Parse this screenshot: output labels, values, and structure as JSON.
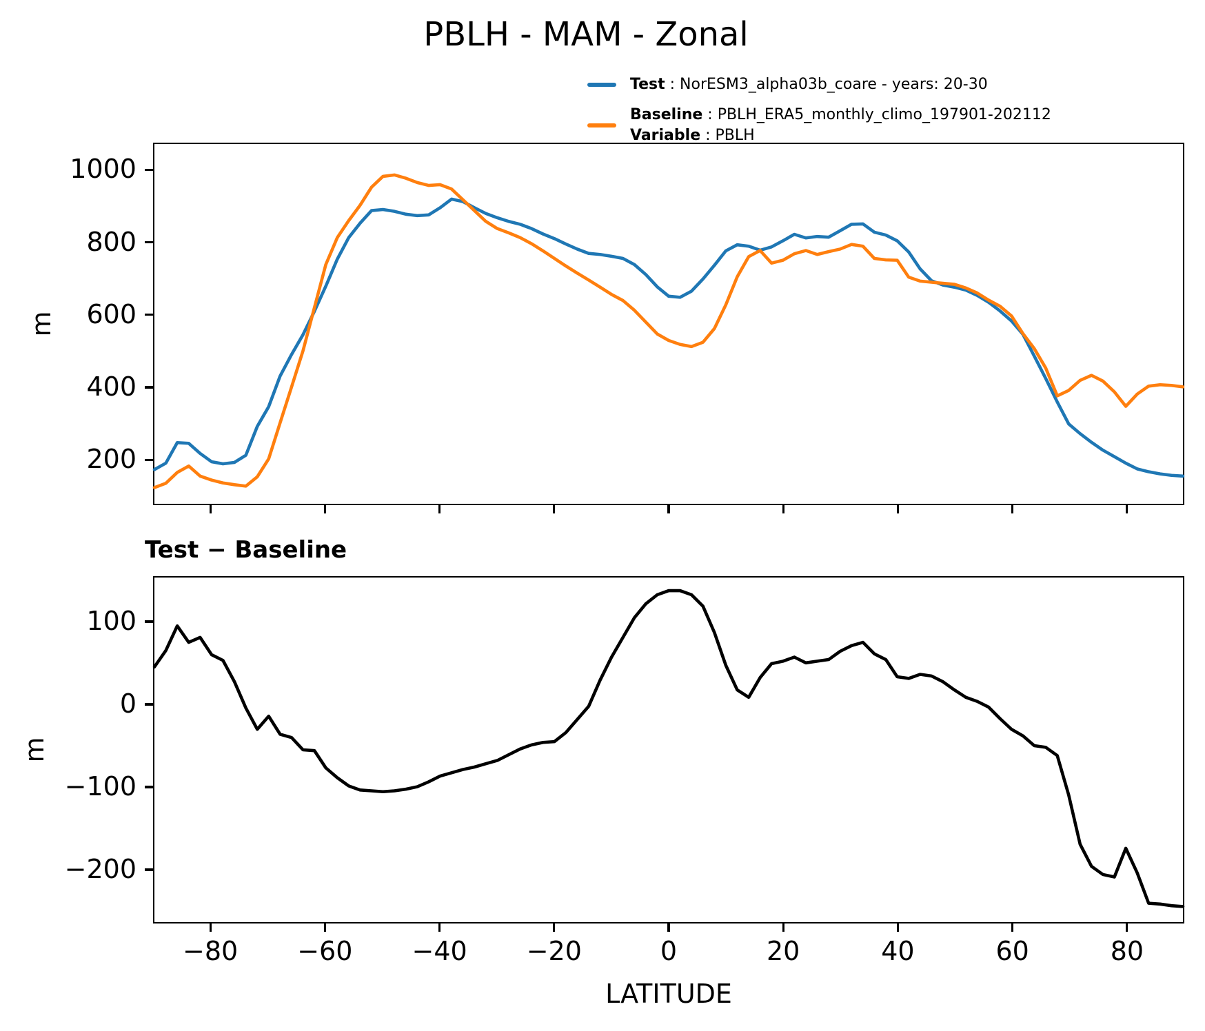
{
  "title": "PBLH - MAM - Zonal",
  "subtitle": "Test − Baseline",
  "legend": {
    "test_label": "Test",
    "test_desc": ": NorESM3_alpha03b_coare - years: 20-30",
    "baseline_label": "Baseline",
    "baseline_desc": ": PBLH_ERA5_monthly_climo_197901-202112",
    "variable_label": "Variable",
    "variable_desc": ": PBLH"
  },
  "colors": {
    "test": "#1f77b4",
    "baseline": "#ff7f0e",
    "diff": "#000000"
  },
  "axes": {
    "ylabel_top": "m",
    "ylabel_bottom": "m",
    "xlabel": "LATITUDE"
  },
  "chart_data": [
    {
      "type": "line",
      "title": "PBLH - MAM - Zonal",
      "ylabel": "m",
      "xlabel": "",
      "legend_position": "upper right, above axes",
      "grid": false,
      "xlim": [
        -90,
        90
      ],
      "ylim": [
        75,
        1075
      ],
      "yticks": [
        200,
        400,
        600,
        800,
        1000
      ],
      "xticks": [
        -80,
        -60,
        -40,
        -20,
        0,
        20,
        40,
        60,
        80
      ],
      "xticks_labeled": false,
      "x": [
        -90,
        -88,
        -86,
        -84,
        -82,
        -80,
        -78,
        -76,
        -74,
        -72,
        -70,
        -68,
        -66,
        -64,
        -62,
        -60,
        -58,
        -56,
        -54,
        -52,
        -50,
        -48,
        -46,
        -44,
        -42,
        -40,
        -38,
        -36,
        -34,
        -32,
        -30,
        -28,
        -26,
        -24,
        -22,
        -20,
        -18,
        -16,
        -14,
        -12,
        -10,
        -8,
        -6,
        -4,
        -2,
        0,
        2,
        4,
        6,
        8,
        10,
        12,
        14,
        16,
        18,
        20,
        22,
        24,
        26,
        28,
        30,
        32,
        34,
        36,
        38,
        40,
        42,
        44,
        46,
        48,
        50,
        52,
        54,
        56,
        58,
        60,
        62,
        64,
        66,
        68,
        70,
        72,
        74,
        76,
        78,
        80,
        82,
        84,
        86,
        88,
        90
      ],
      "series": [
        {
          "name": "Test: NorESM3_alpha03b_coare - years: 20-30",
          "color": "#1f77b4",
          "values": [
            170,
            188,
            245,
            243,
            215,
            192,
            186,
            190,
            210,
            290,
            345,
            430,
            490,
            545,
            610,
            680,
            755,
            815,
            855,
            890,
            893,
            888,
            880,
            876,
            878,
            898,
            922,
            915,
            898,
            882,
            870,
            860,
            852,
            840,
            825,
            812,
            797,
            783,
            771,
            768,
            763,
            757,
            740,
            712,
            678,
            652,
            649,
            666,
            700,
            738,
            778,
            795,
            791,
            780,
            789,
            806,
            824,
            814,
            818,
            816,
            834,
            852,
            853,
            830,
            822,
            806,
            775,
            728,
            695,
            683,
            677,
            669,
            654,
            635,
            611,
            583,
            546,
            485,
            423,
            358,
            297,
            270,
            246,
            224,
            206,
            188,
            172,
            164,
            158,
            154,
            152
          ]
        },
        {
          "name": "Baseline: PBLH_ERA5_monthly_climo_197901-202112",
          "color": "#ff7f0e",
          "values": [
            120,
            132,
            162,
            180,
            152,
            141,
            133,
            128,
            124,
            150,
            200,
            300,
            400,
            500,
            620,
            740,
            815,
            862,
            905,
            955,
            985,
            989,
            980,
            968,
            960,
            962,
            950,
            920,
            890,
            860,
            840,
            828,
            815,
            798,
            778,
            757,
            736,
            716,
            697,
            677,
            657,
            640,
            613,
            580,
            547,
            529,
            518,
            512,
            524,
            562,
            628,
            706,
            762,
            779,
            744,
            752,
            770,
            779,
            768,
            776,
            783,
            796,
            791,
            757,
            753,
            752,
            705,
            694,
            691,
            688,
            685,
            675,
            661,
            641,
            624,
            597,
            548,
            506,
            452,
            375,
            390,
            418,
            432,
            416,
            386,
            346,
            380,
            402,
            406,
            404,
            400
          ]
        }
      ]
    },
    {
      "type": "line",
      "title": "Test − Baseline",
      "ylabel": "m",
      "xlabel": "LATITUDE",
      "grid": false,
      "xlim": [
        -90,
        90
      ],
      "ylim": [
        -265,
        155
      ],
      "yticks": [
        -200,
        -100,
        0,
        100
      ],
      "xticks": [
        -80,
        -60,
        -40,
        -20,
        0,
        20,
        40,
        60,
        80
      ],
      "xticks_labeled": true,
      "x": [
        -90,
        -88,
        -86,
        -84,
        -82,
        -80,
        -78,
        -76,
        -74,
        -72,
        -70,
        -68,
        -66,
        -64,
        -62,
        -60,
        -58,
        -56,
        -54,
        -52,
        -50,
        -48,
        -46,
        -44,
        -42,
        -40,
        -38,
        -36,
        -34,
        -32,
        -30,
        -28,
        -26,
        -24,
        -22,
        -20,
        -18,
        -16,
        -14,
        -12,
        -10,
        -8,
        -6,
        -4,
        -2,
        0,
        2,
        4,
        6,
        8,
        10,
        12,
        14,
        16,
        18,
        20,
        22,
        24,
        26,
        28,
        30,
        32,
        34,
        36,
        38,
        40,
        42,
        44,
        46,
        48,
        50,
        52,
        54,
        56,
        58,
        60,
        62,
        64,
        66,
        68,
        70,
        72,
        74,
        76,
        78,
        80,
        82,
        84,
        86,
        88,
        90
      ],
      "series": [
        {
          "name": "Test − Baseline",
          "color": "#000000",
          "values": [
            46,
            66,
            96,
            76,
            82,
            61,
            54,
            28,
            -4,
            -30,
            -14,
            -36,
            -40,
            -55,
            -56,
            -77,
            -89,
            -99,
            -104,
            -105,
            -106,
            -105,
            -103,
            -100,
            -94,
            -87,
            -83,
            -79,
            -76,
            -72,
            -68,
            -61,
            -54,
            -49,
            -46,
            -45,
            -34,
            -18,
            -2,
            30,
            58,
            82,
            106,
            123,
            134,
            139,
            139,
            134,
            120,
            88,
            48,
            18,
            9,
            33,
            50,
            53,
            58,
            51,
            53,
            55,
            65,
            72,
            76,
            62,
            55,
            34,
            32,
            37,
            35,
            28,
            18,
            9,
            4,
            -3,
            -17,
            -30,
            -38,
            -50,
            -52,
            -62,
            -110,
            -170,
            -197,
            -207,
            -210,
            -175,
            -205,
            -242,
            -243,
            -245,
            -246
          ]
        }
      ]
    }
  ]
}
